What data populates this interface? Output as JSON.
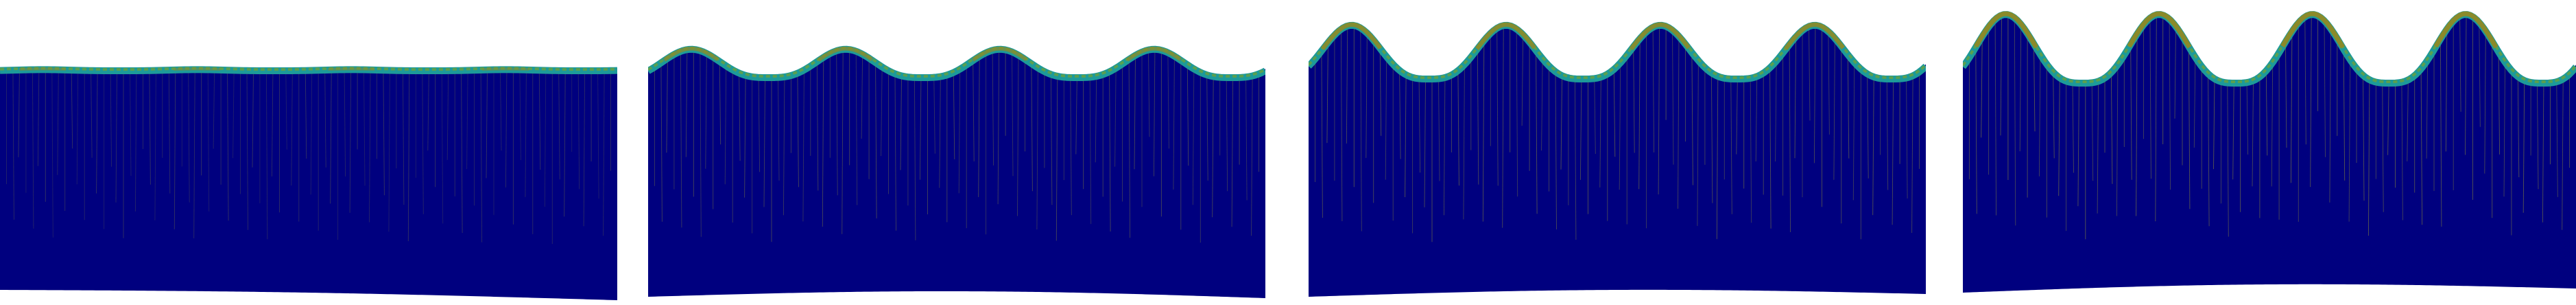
{
  "figure": {
    "panel_count": 4,
    "panels": [
      {
        "id": "panel-1",
        "bump_amplitude": 0.08,
        "colormap": "jet"
      },
      {
        "id": "panel-2",
        "bump_amplitude": 0.55,
        "colormap": "jet"
      },
      {
        "id": "panel-3",
        "bump_amplitude": 0.85,
        "colormap": "jet"
      },
      {
        "id": "panel-4",
        "bump_amplitude": 1.0,
        "colormap": "jet"
      }
    ],
    "colors": {
      "body_fill": "#00007f",
      "surface_teal": "#1d9a9a",
      "surface_olive": "#8a8a2a",
      "surface_green": "#5aa050",
      "vein_olive": "#9a9a30",
      "background": "#ffffff"
    }
  }
}
